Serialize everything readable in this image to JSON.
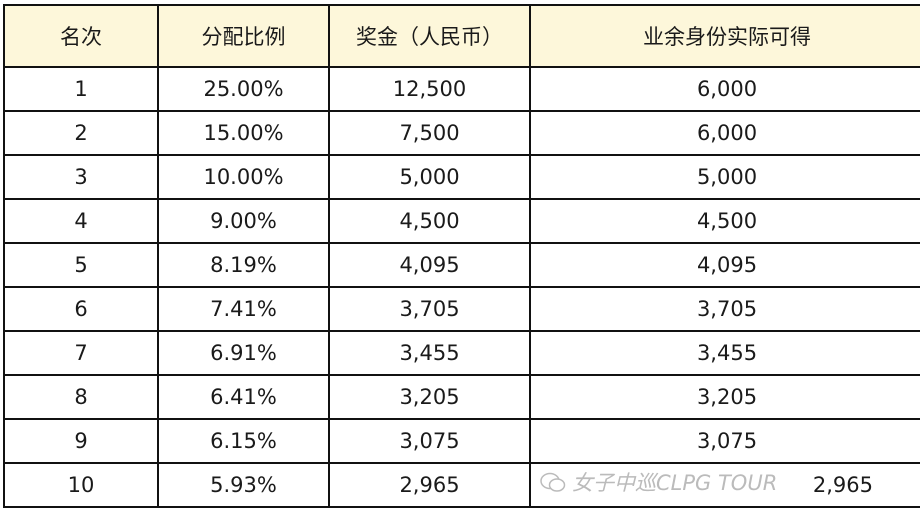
{
  "table": {
    "headers": [
      "名次",
      "分配比例",
      "奖金（人民币）",
      "业余身份实际可得"
    ],
    "rows": [
      [
        "1",
        "25.00%",
        "12,500",
        "6,000"
      ],
      [
        "2",
        "15.00%",
        "7,500",
        "6,000"
      ],
      [
        "3",
        "10.00%",
        "5,000",
        "5,000"
      ],
      [
        "4",
        "9.00%",
        "4,500",
        "4,500"
      ],
      [
        "5",
        "8.19%",
        "4,095",
        "4,095"
      ],
      [
        "6",
        "7.41%",
        "3,705",
        "3,705"
      ],
      [
        "7",
        "6.91%",
        "3,455",
        "3,455"
      ],
      [
        "8",
        "6.41%",
        "3,205",
        "3,205"
      ],
      [
        "9",
        "6.15%",
        "3,075",
        "3,075"
      ],
      [
        "10",
        "5.93%",
        "2,965",
        "2,965"
      ]
    ]
  },
  "watermark": {
    "text": "女子中巡CLPG TOUR",
    "icon": "wechat-icon"
  },
  "colors": {
    "header_bg": "#fdf7da",
    "border": "#111111"
  }
}
